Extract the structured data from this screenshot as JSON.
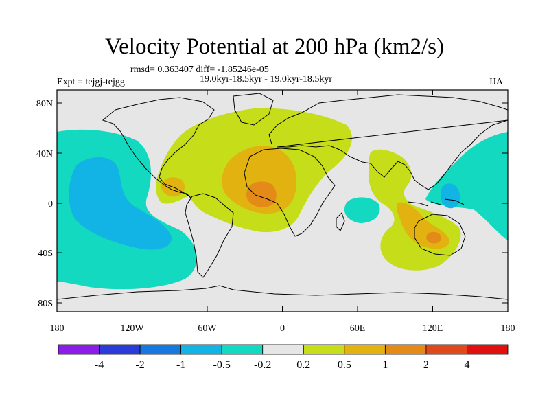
{
  "title": "Velocity Potential at 200 hPa (km2/s)",
  "stats": "rmsd= 0.363407 diff= -1.85246e-05",
  "period": "19.0kyr-18.5kyr - 19.0kyr-18.5kyr",
  "experiment": "Expt = tejgj-tejgg",
  "season": "JJA",
  "lat_ticks": [
    "80N",
    "40N",
    "0",
    "40S",
    "80S"
  ],
  "lon_ticks": [
    "180",
    "120W",
    "60W",
    "0",
    "60E",
    "120E",
    "180"
  ],
  "colorbar": {
    "colors": [
      "#8a1ee6",
      "#2a3bd8",
      "#1579e0",
      "#12b4e6",
      "#12d9c0",
      "#e6e6e6",
      "#c6dd1a",
      "#e1b210",
      "#e38a18",
      "#e0491a",
      "#e01010"
    ],
    "labels": [
      "-4",
      "-2",
      "-1",
      "-0.5",
      "-0.2",
      "0.2",
      "0.5",
      "1",
      "2",
      "4"
    ]
  },
  "colors": {
    "background_field": "#e6e6e6",
    "coast": "#000000"
  }
}
